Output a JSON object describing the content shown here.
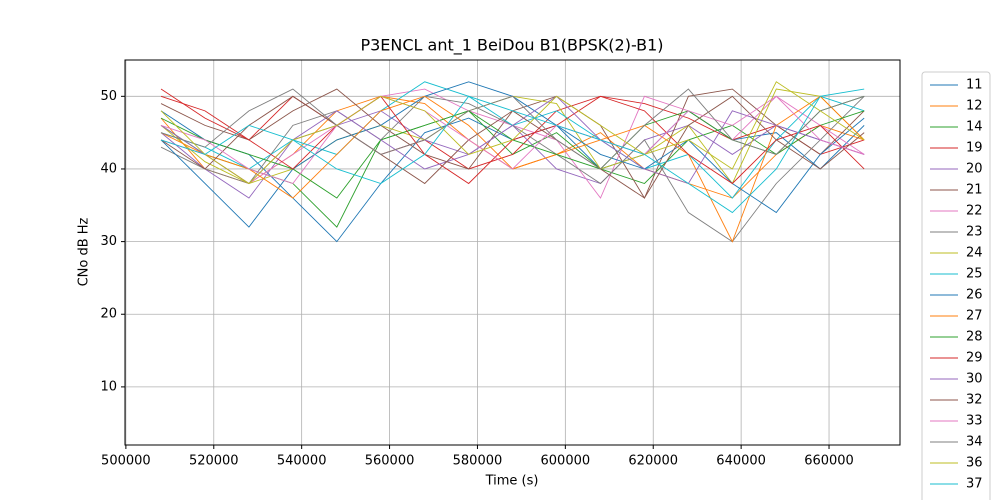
{
  "chart_data": {
    "type": "line",
    "title": "P3ENCL ant_1 BeiDou B1(BPSK(2)-B1)",
    "x_label": "Time (s)",
    "y_label": "CNo dB Hz",
    "x": [
      508000,
      518000,
      528000,
      538000,
      548000,
      558000,
      568000,
      578000,
      588000,
      598000,
      608000,
      618000,
      628000,
      638000,
      648000,
      658000,
      668000
    ],
    "xlim": [
      499800,
      676150
    ],
    "ylim": [
      2.0,
      55.0
    ],
    "xticks": [
      500000,
      520000,
      540000,
      560000,
      580000,
      600000,
      620000,
      640000,
      660000
    ],
    "yticks": [
      10,
      20,
      30,
      40,
      50
    ],
    "grid": true,
    "legend": "outside-right",
    "series": [
      {
        "name": "11",
        "color": "#1f77b4",
        "values": [
          48,
          44,
          42,
          36,
          30,
          38,
          45,
          47,
          44,
          46,
          40,
          42,
          48,
          44,
          45,
          40,
          46
        ]
      },
      {
        "name": "12",
        "color": "#ff7f0e",
        "values": [
          47,
          40,
          38,
          42,
          48,
          50,
          49,
          44,
          40,
          42,
          45,
          40,
          38,
          36,
          42,
          46,
          44
        ]
      },
      {
        "name": "14",
        "color": "#2ca02c",
        "values": [
          46,
          42,
          40,
          38,
          32,
          44,
          46,
          48,
          42,
          45,
          40,
          38,
          44,
          46,
          42,
          48,
          50
        ]
      },
      {
        "name": "19",
        "color": "#d62728",
        "values": [
          51,
          47,
          44,
          50,
          46,
          42,
          44,
          40,
          42,
          48,
          50,
          49,
          47,
          44,
          46,
          42,
          44
        ]
      },
      {
        "name": "20",
        "color": "#9467bd",
        "values": [
          45,
          40,
          36,
          44,
          46,
          48,
          44,
          42,
          46,
          40,
          38,
          44,
          46,
          42,
          46,
          44,
          42
        ]
      },
      {
        "name": "21",
        "color": "#8c564b",
        "values": [
          49,
          46,
          44,
          48,
          51,
          46,
          42,
          40,
          48,
          50,
          46,
          36,
          50,
          51,
          46,
          42,
          48
        ]
      },
      {
        "name": "22",
        "color": "#e377c2",
        "values": [
          44,
          42,
          38,
          42,
          46,
          50,
          51,
          48,
          46,
          44,
          36,
          50,
          48,
          44,
          50,
          46,
          42
        ]
      },
      {
        "name": "23",
        "color": "#7f7f7f",
        "values": [
          43,
          40,
          38,
          46,
          48,
          44,
          50,
          49,
          46,
          42,
          38,
          44,
          34,
          30,
          38,
          44,
          50
        ]
      },
      {
        "name": "24",
        "color": "#bcbd22",
        "values": [
          46,
          41,
          38,
          40,
          44,
          46,
          44,
          48,
          50,
          49,
          40,
          42,
          46,
          38,
          51,
          50,
          44
        ]
      },
      {
        "name": "25",
        "color": "#17becf",
        "values": [
          45,
          43,
          40,
          44,
          42,
          48,
          52,
          50,
          46,
          48,
          44,
          40,
          42,
          36,
          44,
          50,
          48
        ]
      },
      {
        "name": "26",
        "color": "#1f77b4",
        "values": [
          44,
          38,
          32,
          40,
          44,
          46,
          50,
          52,
          50,
          46,
          42,
          40,
          44,
          38,
          34,
          42,
          47
        ]
      },
      {
        "name": "27",
        "color": "#ff7f0e",
        "values": [
          45,
          42,
          40,
          36,
          42,
          48,
          50,
          46,
          40,
          42,
          44,
          46,
          42,
          30,
          46,
          50,
          44
        ]
      },
      {
        "name": "28",
        "color": "#2ca02c",
        "values": [
          47,
          44,
          42,
          40,
          36,
          44,
          46,
          48,
          44,
          42,
          40,
          46,
          48,
          44,
          42,
          46,
          48
        ]
      },
      {
        "name": "29",
        "color": "#d62728",
        "values": [
          50,
          48,
          44,
          40,
          46,
          50,
          42,
          38,
          44,
          46,
          50,
          48,
          42,
          38,
          44,
          46,
          40
        ]
      },
      {
        "name": "30",
        "color": "#9467bd",
        "values": [
          46,
          42,
          38,
          44,
          48,
          44,
          40,
          42,
          46,
          50,
          44,
          40,
          38,
          48,
          46,
          44,
          42
        ]
      },
      {
        "name": "32",
        "color": "#8c564b",
        "values": [
          44,
          40,
          46,
          50,
          46,
          42,
          38,
          44,
          48,
          44,
          40,
          36,
          46,
          50,
          44,
          40,
          45
        ]
      },
      {
        "name": "33",
        "color": "#e377c2",
        "values": [
          46,
          44,
          40,
          38,
          46,
          50,
          48,
          44,
          40,
          46,
          44,
          42,
          48,
          46,
          50,
          44,
          42
        ]
      },
      {
        "name": "34",
        "color": "#7f7f7f",
        "values": [
          45,
          43,
          48,
          51,
          46,
          42,
          44,
          48,
          50,
          44,
          40,
          46,
          51,
          44,
          42,
          48,
          50
        ]
      },
      {
        "name": "36",
        "color": "#bcbd22",
        "values": [
          48,
          42,
          38,
          44,
          46,
          50,
          48,
          42,
          44,
          50,
          46,
          42,
          44,
          40,
          52,
          48,
          44
        ]
      },
      {
        "name": "37",
        "color": "#17becf",
        "values": [
          44,
          42,
          46,
          44,
          40,
          38,
          42,
          50,
          48,
          46,
          44,
          42,
          38,
          34,
          40,
          50,
          51
        ]
      }
    ]
  }
}
